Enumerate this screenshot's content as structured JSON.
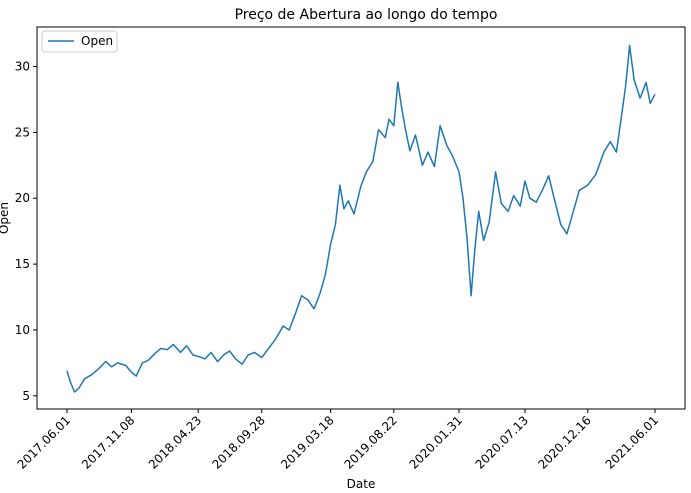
{
  "chart_data": {
    "type": "line",
    "title": "Preço de Abertura ao longo do tempo",
    "xlabel": "Date",
    "ylabel": "Open",
    "x_ticks": [
      "2017.06.01",
      "2017.11.08",
      "2018.04.23",
      "2018.09.28",
      "2019.03.18",
      "2019.08.22",
      "2020.01.31",
      "2020.07.13",
      "2020.12.16",
      "2021.06.01"
    ],
    "y_ticks": [
      5,
      10,
      15,
      20,
      25,
      30
    ],
    "ylim": [
      4.0,
      33.0
    ],
    "grid": false,
    "legend_position": "top-left",
    "series": [
      {
        "name": "Open",
        "color": "#1f77b4",
        "points": [
          [
            "2017-06-01",
            6.9
          ],
          [
            "2017-06-10",
            6.0
          ],
          [
            "2017-06-20",
            5.3
          ],
          [
            "2017-07-01",
            5.6
          ],
          [
            "2017-07-15",
            6.3
          ],
          [
            "2017-08-01",
            6.6
          ],
          [
            "2017-08-20",
            7.1
          ],
          [
            "2017-09-05",
            7.6
          ],
          [
            "2017-09-20",
            7.2
          ],
          [
            "2017-10-05",
            7.5
          ],
          [
            "2017-10-25",
            7.3
          ],
          [
            "2017-11-08",
            6.8
          ],
          [
            "2017-11-20",
            6.5
          ],
          [
            "2017-12-05",
            7.5
          ],
          [
            "2017-12-20",
            7.7
          ],
          [
            "2018-01-05",
            8.2
          ],
          [
            "2018-01-20",
            8.6
          ],
          [
            "2018-02-05",
            8.5
          ],
          [
            "2018-02-20",
            8.9
          ],
          [
            "2018-03-10",
            8.3
          ],
          [
            "2018-03-25",
            8.8
          ],
          [
            "2018-04-10",
            8.1
          ],
          [
            "2018-04-23",
            8.0
          ],
          [
            "2018-05-10",
            7.8
          ],
          [
            "2018-05-25",
            8.3
          ],
          [
            "2018-06-10",
            7.6
          ],
          [
            "2018-06-25",
            8.1
          ],
          [
            "2018-07-10",
            8.4
          ],
          [
            "2018-07-25",
            7.8
          ],
          [
            "2018-08-10",
            7.4
          ],
          [
            "2018-08-25",
            8.1
          ],
          [
            "2018-09-10",
            8.3
          ],
          [
            "2018-09-28",
            7.9
          ],
          [
            "2018-10-15",
            8.6
          ],
          [
            "2018-11-01",
            9.3
          ],
          [
            "2018-11-20",
            10.3
          ],
          [
            "2018-12-05",
            10.0
          ],
          [
            "2018-12-20",
            11.2
          ],
          [
            "2019-01-05",
            12.6
          ],
          [
            "2019-01-20",
            12.3
          ],
          [
            "2019-02-05",
            11.6
          ],
          [
            "2019-02-20",
            12.8
          ],
          [
            "2019-03-05",
            14.2
          ],
          [
            "2019-03-18",
            16.5
          ],
          [
            "2019-03-30",
            18.0
          ],
          [
            "2019-04-10",
            21.0
          ],
          [
            "2019-04-20",
            19.2
          ],
          [
            "2019-05-01",
            19.8
          ],
          [
            "2019-05-15",
            18.8
          ],
          [
            "2019-06-01",
            20.9
          ],
          [
            "2019-06-15",
            22.0
          ],
          [
            "2019-07-01",
            22.8
          ],
          [
            "2019-07-15",
            25.2
          ],
          [
            "2019-08-01",
            24.6
          ],
          [
            "2019-08-10",
            26.0
          ],
          [
            "2019-08-22",
            25.5
          ],
          [
            "2019-09-01",
            28.8
          ],
          [
            "2019-09-10",
            27.0
          ],
          [
            "2019-09-20",
            25.2
          ],
          [
            "2019-10-01",
            23.6
          ],
          [
            "2019-10-15",
            24.8
          ],
          [
            "2019-11-01",
            22.5
          ],
          [
            "2019-11-15",
            23.5
          ],
          [
            "2019-12-01",
            22.4
          ],
          [
            "2019-12-15",
            25.5
          ],
          [
            "2020-01-01",
            24.0
          ],
          [
            "2020-01-15",
            23.2
          ],
          [
            "2020-01-31",
            22.0
          ],
          [
            "2020-02-10",
            20.0
          ],
          [
            "2020-02-20",
            17.0
          ],
          [
            "2020-03-01",
            12.6
          ],
          [
            "2020-03-10",
            16.0
          ],
          [
            "2020-03-20",
            19.0
          ],
          [
            "2020-04-01",
            16.8
          ],
          [
            "2020-04-15",
            18.2
          ],
          [
            "2020-05-01",
            22.0
          ],
          [
            "2020-05-15",
            19.6
          ],
          [
            "2020-06-01",
            19.0
          ],
          [
            "2020-06-15",
            20.2
          ],
          [
            "2020-07-01",
            19.4
          ],
          [
            "2020-07-13",
            21.3
          ],
          [
            "2020-07-25",
            20.0
          ],
          [
            "2020-08-10",
            19.7
          ],
          [
            "2020-08-25",
            20.6
          ],
          [
            "2020-09-10",
            21.7
          ],
          [
            "2020-09-25",
            19.8
          ],
          [
            "2020-10-10",
            18.0
          ],
          [
            "2020-10-25",
            17.3
          ],
          [
            "2020-11-10",
            19.0
          ],
          [
            "2020-11-25",
            20.6
          ],
          [
            "2020-12-16",
            21.0
          ],
          [
            "2021-01-05",
            21.8
          ],
          [
            "2021-01-25",
            23.5
          ],
          [
            "2021-02-10",
            24.3
          ],
          [
            "2021-02-25",
            23.5
          ],
          [
            "2021-03-10",
            26.3
          ],
          [
            "2021-03-20",
            28.5
          ],
          [
            "2021-03-30",
            31.6
          ],
          [
            "2021-04-10",
            29.0
          ],
          [
            "2021-04-25",
            27.6
          ],
          [
            "2021-05-10",
            28.8
          ],
          [
            "2021-05-20",
            27.2
          ],
          [
            "2021-06-01",
            27.9
          ]
        ]
      }
    ]
  }
}
